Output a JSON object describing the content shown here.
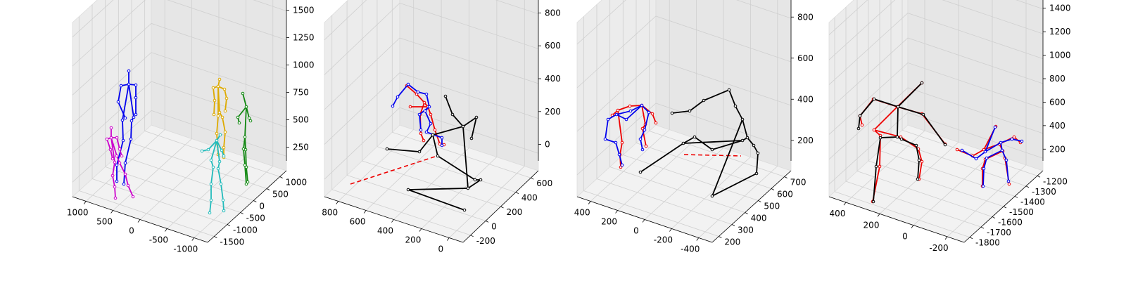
{
  "chart_data": [
    {
      "type": "3d-skeleton",
      "axes": {
        "x": {
          "ticks": [
            "-1000",
            "-500",
            "0",
            "500",
            "1000"
          ]
        },
        "y": {
          "ticks": [
            "-1500",
            "-1000",
            "-500",
            "0",
            "500",
            "1000"
          ]
        },
        "z": {
          "ticks": [
            "250",
            "500",
            "750",
            "1000",
            "1250",
            "1500"
          ]
        }
      },
      "skeleton_colors": [
        "#0000ee",
        "#cc00cc",
        "#ddaa00",
        "#22bbbb",
        "#118811"
      ]
    },
    {
      "type": "3d-skeleton",
      "axes": {
        "x": {
          "ticks": [
            "0",
            "200",
            "400",
            "600",
            "800"
          ]
        },
        "y": {
          "ticks": [
            "-200",
            "0",
            "200",
            "400",
            "600"
          ]
        },
        "z": {
          "ticks": [
            "0",
            "200",
            "400",
            "600",
            "800"
          ]
        }
      },
      "skeleton_colors": [
        "#0000ee",
        "#ee0000",
        "#118811"
      ]
    },
    {
      "type": "3d-skeleton",
      "axes": {
        "x": {
          "ticks": [
            "-400",
            "-200",
            "0",
            "200",
            "400"
          ]
        },
        "y": {
          "ticks": [
            "200",
            "300",
            "400",
            "500",
            "600",
            "700"
          ]
        },
        "z": {
          "ticks": [
            "200",
            "400",
            "600",
            "800"
          ]
        }
      },
      "skeleton_colors": [
        "#0000ee",
        "#ee0000",
        "#118811"
      ]
    },
    {
      "type": "3d-skeleton",
      "axes": {
        "x": {
          "ticks": [
            "-200",
            "0",
            "200",
            "400"
          ]
        },
        "y": {
          "ticks": [
            "-1800",
            "-1700",
            "-1600",
            "-1500",
            "-1400",
            "-1300",
            "-1200"
          ]
        },
        "z": {
          "ticks": [
            "200",
            "400",
            "600",
            "800",
            "1000",
            "1200",
            "1400"
          ]
        }
      },
      "skeleton_colors": [
        "#0000ee",
        "#ee0000",
        "#118811"
      ]
    }
  ]
}
